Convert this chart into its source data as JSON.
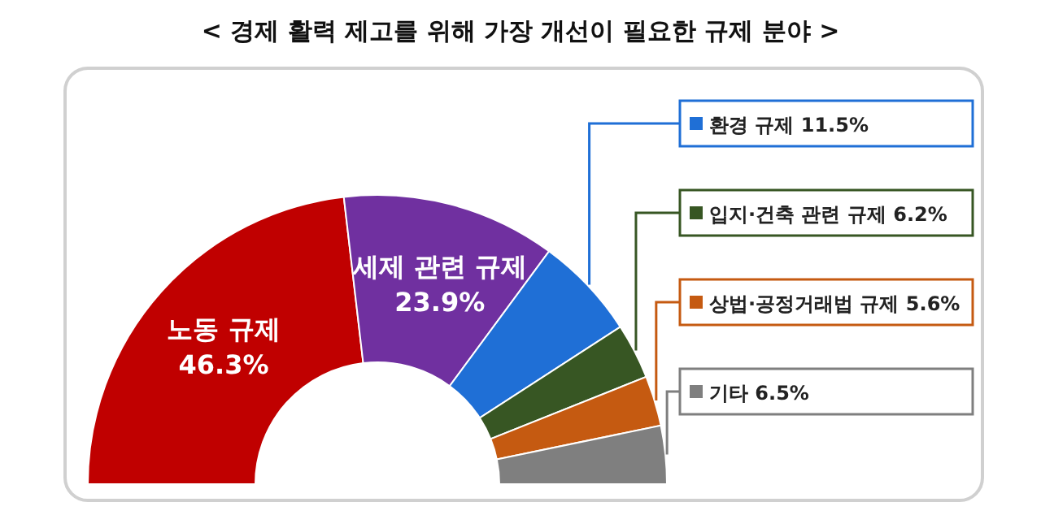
{
  "chart_data": {
    "type": "donut",
    "title": "< 경제 활력 제고를 위해 가장 개선이 필요한 규제 분야 >",
    "categories": [
      "노동 규제",
      "세제 관련 규제",
      "환경 규제",
      "입지·건축 관련 규제",
      "상법·공정거래법 규제",
      "기타"
    ],
    "values": [
      46.3,
      23.9,
      11.5,
      6.2,
      5.6,
      6.5
    ],
    "colors": [
      "#c00000",
      "#7030a0",
      "#1f6fd6",
      "#375623",
      "#c55a11",
      "#7f7f7f"
    ],
    "value_labels": [
      "46.3%",
      "23.9%",
      "11.5%",
      "6.2%",
      "5.6%",
      "6.5%"
    ],
    "legend": "right"
  }
}
